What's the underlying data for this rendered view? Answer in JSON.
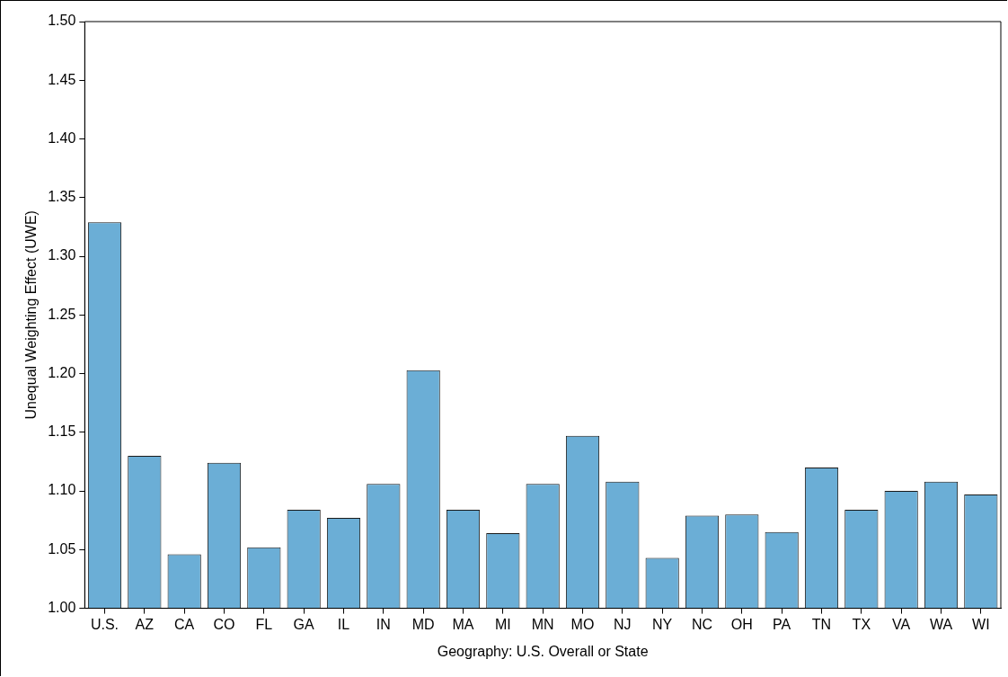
{
  "chart_data": {
    "type": "bar",
    "xlabel": "Geography: U.S. Overall or State",
    "ylabel": "Unequal Weighting Effect (UWE)",
    "categories": [
      "U.S.",
      "AZ",
      "CA",
      "CO",
      "FL",
      "GA",
      "IL",
      "IN",
      "MD",
      "MA",
      "MI",
      "MN",
      "MO",
      "NJ",
      "NY",
      "NC",
      "OH",
      "PA",
      "TN",
      "TX",
      "VA",
      "WA",
      "WI"
    ],
    "values": [
      1.329,
      1.13,
      1.046,
      1.124,
      1.052,
      1.084,
      1.077,
      1.106,
      1.203,
      1.084,
      1.064,
      1.106,
      1.147,
      1.108,
      1.043,
      1.079,
      1.08,
      1.065,
      1.12,
      1.084,
      1.1,
      1.108,
      1.097
    ],
    "color": "#6baed6",
    "ylim": [
      1.0,
      1.5
    ],
    "yticks": [
      {
        "value": 1.0,
        "label": "1.00"
      },
      {
        "value": 1.05,
        "label": "1.05"
      },
      {
        "value": 1.1,
        "label": "1.10"
      },
      {
        "value": 1.15,
        "label": "1.15"
      },
      {
        "value": 1.2,
        "label": "1.20"
      },
      {
        "value": 1.25,
        "label": "1.25"
      },
      {
        "value": 1.3,
        "label": "1.30"
      },
      {
        "value": 1.35,
        "label": "1.35"
      },
      {
        "value": 1.4,
        "label": "1.40"
      },
      {
        "value": 1.45,
        "label": "1.45"
      },
      {
        "value": 1.5,
        "label": "1.50"
      }
    ],
    "grid": false,
    "legend": false
  }
}
